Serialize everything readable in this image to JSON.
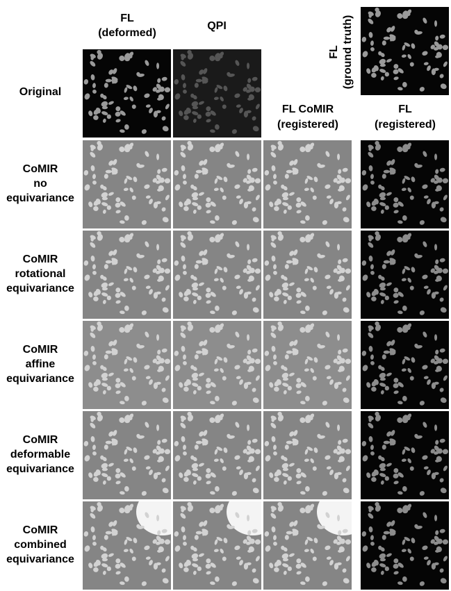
{
  "column_headers": [
    {
      "lines": [
        "FL",
        "(deformed)"
      ]
    },
    {
      "lines": [
        "QPI"
      ]
    },
    {
      "lines": [
        "FL CoMIR",
        "(registered)"
      ]
    },
    {
      "lines": [
        "FL",
        "(registered)"
      ]
    }
  ],
  "ground_truth_label": [
    "FL",
    "(ground truth)"
  ],
  "row_labels": [
    [
      "Original"
    ],
    [
      "CoMIR",
      "no",
      "equivariance"
    ],
    [
      "CoMIR",
      "rotational",
      "equivariance"
    ],
    [
      "CoMIR",
      "affine",
      "equivariance"
    ],
    [
      "CoMIR",
      "deformable",
      "equivariance"
    ],
    [
      "CoMIR",
      "combined",
      "equivariance"
    ]
  ]
}
